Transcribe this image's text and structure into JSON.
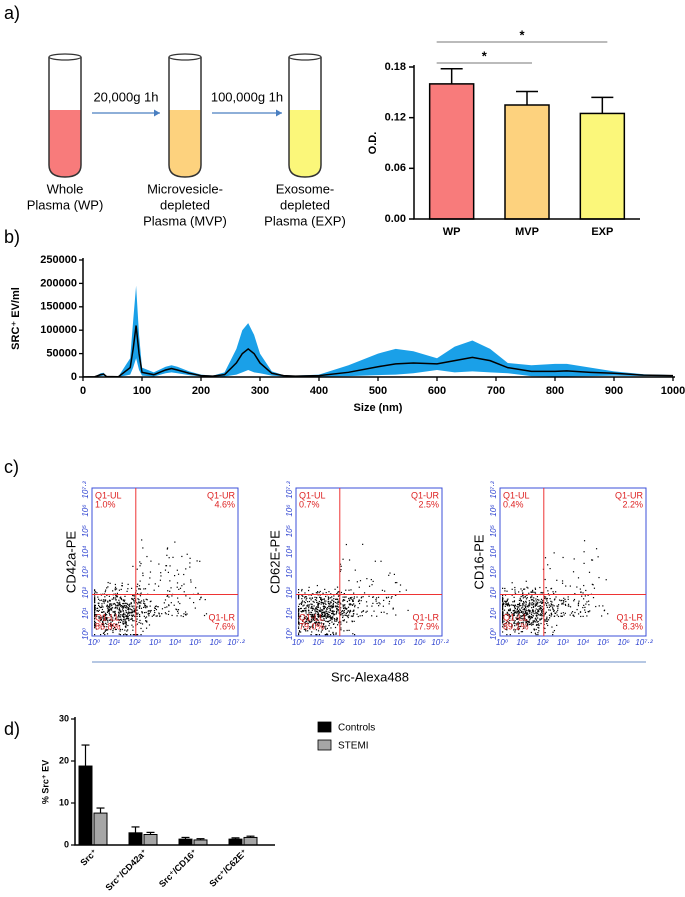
{
  "panel_labels": [
    "a)",
    "b)",
    "c)",
    "d)"
  ],
  "diagram": {
    "tubes": [
      {
        "lines": [
          "Whole",
          "Plasma (WP)"
        ],
        "color": "#f87b7b"
      },
      {
        "lines": [
          "Microvesicle-",
          "depleted",
          "Plasma (MVP)"
        ],
        "color": "#fdd27e"
      },
      {
        "lines": [
          "Exosome-",
          "depleted",
          "Plasma (EXP)"
        ],
        "color": "#fbf77a"
      }
    ],
    "steps": [
      "20,000g 1h",
      "100,000g 1h"
    ]
  },
  "flow": {
    "x_label": "Src-Alexa488",
    "axis_ticks": [
      "10⁰",
      "10¹",
      "10²",
      "10³",
      "10⁴",
      "10⁵",
      "10⁶",
      "10⁷·²"
    ],
    "plots": [
      {
        "y_label": "CD42a-PE",
        "quadrants": [
          [
            "Q1-UL",
            "1.0%"
          ],
          [
            "Q1-UR",
            "4.6%"
          ],
          [
            "Q1-LR",
            "7.6%"
          ],
          [
            "Q1-LL",
            "86.8%"
          ]
        ]
      },
      {
        "y_label": "CD62E-PE",
        "quadrants": [
          [
            "Q1-UL",
            "0.7%"
          ],
          [
            "Q1-UR",
            "2.5%"
          ],
          [
            "Q1-LR",
            "17.9%"
          ],
          [
            "Q1-LL",
            "79.0%"
          ]
        ]
      },
      {
        "y_label": "CD16-PE",
        "quadrants": [
          [
            "Q1-UL",
            "0.4%"
          ],
          [
            "Q1-UR",
            "2.2%"
          ],
          [
            "Q1-LR",
            "8.3%"
          ],
          [
            "Q1-LL",
            "89.1%"
          ]
        ]
      }
    ]
  },
  "chart_data": [
    {
      "type": "bar",
      "y_label": "O.D.",
      "categories": [
        "WP",
        "MVP",
        "EXP"
      ],
      "values": [
        0.16,
        0.135,
        0.125
      ],
      "errors": [
        0.018,
        0.016,
        0.019
      ],
      "colors": [
        "#f87b7b",
        "#fdd27e",
        "#fbf77a"
      ],
      "ylim": [
        0,
        0.18
      ],
      "yticks": [
        {
          "value": 0,
          "label": "0.00"
        },
        0.06,
        0.12,
        0.18
      ],
      "significance": [
        {
          "label": "*",
          "from": 0,
          "to": 2
        },
        {
          "label": "*",
          "from": 0,
          "to": 1
        }
      ]
    },
    {
      "type": "band",
      "y_label": "SRC⁺ EV/ml",
      "x_label": "Size (nm)",
      "color": "#000000",
      "band_color": "#1aa0e8",
      "x": [
        0,
        20,
        30,
        35,
        40,
        60,
        80,
        85,
        90,
        95,
        100,
        120,
        140,
        150,
        160,
        180,
        200,
        220,
        240,
        260,
        270,
        280,
        290,
        300,
        320,
        340,
        360,
        400,
        450,
        500,
        530,
        560,
        600,
        630,
        660,
        690,
        720,
        760,
        800,
        820,
        860,
        900,
        950,
        1000
      ],
      "values": [
        0,
        500,
        5000,
        6000,
        1000,
        500,
        20000,
        60000,
        110000,
        50000,
        10000,
        5000,
        15000,
        18000,
        15000,
        8000,
        3000,
        2000,
        5000,
        30000,
        50000,
        60000,
        50000,
        30000,
        8000,
        3000,
        2000,
        3000,
        10000,
        22000,
        28000,
        30000,
        28000,
        35000,
        42000,
        35000,
        20000,
        12000,
        12000,
        13000,
        10000,
        8000,
        4000,
        3000
      ],
      "band_upper": [
        0,
        1000,
        8000,
        9000,
        2000,
        1000,
        40000,
        120000,
        195000,
        90000,
        20000,
        10000,
        22000,
        25000,
        22000,
        12000,
        5000,
        3000,
        10000,
        60000,
        100000,
        115000,
        90000,
        50000,
        12000,
        4000,
        3000,
        5000,
        25000,
        50000,
        60000,
        55000,
        40000,
        65000,
        78000,
        60000,
        30000,
        25000,
        28000,
        28000,
        20000,
        12000,
        6000,
        4000
      ],
      "band_lower": [
        0,
        0,
        2000,
        3000,
        0,
        0,
        5000,
        20000,
        40000,
        15000,
        3000,
        1000,
        8000,
        10000,
        8000,
        4000,
        1000,
        1000,
        1000,
        5000,
        10000,
        15000,
        10000,
        8000,
        3000,
        1000,
        1000,
        1000,
        2000,
        4000,
        5000,
        8000,
        15000,
        10000,
        12000,
        10000,
        8000,
        2000,
        1000,
        1000,
        2000,
        3000,
        2000,
        1500
      ],
      "xlim": [
        0,
        1000
      ],
      "xticks": [
        0,
        100,
        200,
        300,
        400,
        500,
        600,
        700,
        800,
        900,
        1000
      ],
      "ylim": [
        0,
        250000
      ],
      "yticks": [
        0,
        50000,
        100000,
        150000,
        200000,
        250000
      ]
    },
    {
      "type": "grouped_bar",
      "y_label": "% Src⁺ EV",
      "categories": [
        "Src⁺",
        "Src⁺/CD42a⁺",
        "Src⁺/CD16⁺",
        "Src⁺/C62E⁺"
      ],
      "series": [
        {
          "name": "Controls",
          "color": "#000000",
          "values": [
            18.8,
            2.9,
            1.4,
            1.4
          ],
          "errors": [
            5,
            1.4,
            0.4,
            0.3
          ]
        },
        {
          "name": "STEMI",
          "color": "#a6a6a6",
          "values": [
            7.6,
            2.5,
            1.2,
            1.8
          ],
          "errors": [
            1.2,
            0.5,
            0.3,
            0.3
          ]
        }
      ],
      "ylim": [
        0,
        30
      ],
      "yticks": [
        0,
        10,
        20,
        30
      ]
    }
  ]
}
